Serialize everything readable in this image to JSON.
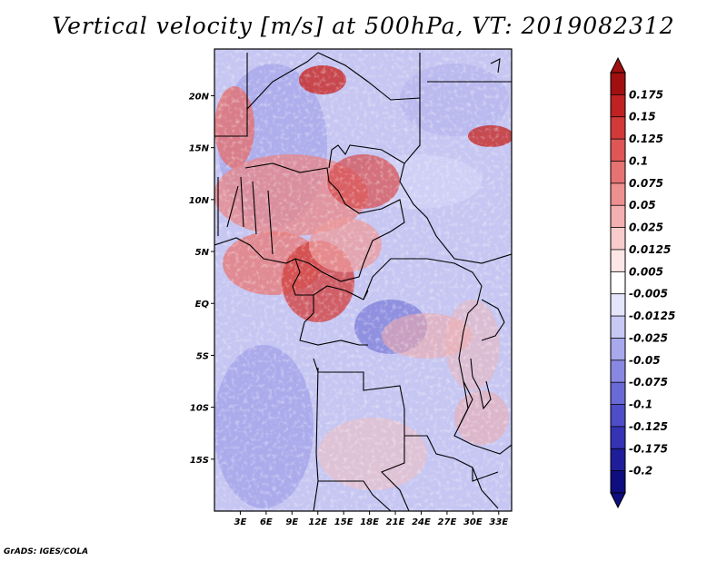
{
  "title": "Vertical velocity [m/s] at 500hPa, VT: 2019082312",
  "footer": "GrADS: IGES/COLA",
  "lat_labels": [
    "20N",
    "15N",
    "10N",
    "5N",
    "EQ",
    "5S",
    "10S",
    "15S"
  ],
  "lon_labels": [
    "3E",
    "6E",
    "9E",
    "12E",
    "15E",
    "18E",
    "21E",
    "24E",
    "27E",
    "30E",
    "33E"
  ],
  "colorbar": {
    "levels": [
      "0.175",
      "0.15",
      "0.125",
      "0.1",
      "0.075",
      "0.05",
      "0.025",
      "0.0125",
      "0.005",
      "-0.005",
      "-0.0125",
      "-0.025",
      "-0.05",
      "-0.075",
      "-0.1",
      "-0.125",
      "-0.175",
      "-0.2"
    ],
    "colors": [
      "#a01010",
      "#bf2222",
      "#d23a3a",
      "#df5656",
      "#e77272",
      "#ee9090",
      "#f4b0b0",
      "#f9cccc",
      "#fde6e6",
      "#ffffff",
      "#e4e4fa",
      "#c8c8f4",
      "#a8a8ec",
      "#8888e2",
      "#6a6ad6",
      "#4e4ec8",
      "#3434b4",
      "#1e1e9a",
      "#0e0e7e"
    ]
  },
  "chart_data": {
    "type": "heatmap",
    "title": "Vertical velocity [m/s] at 500hPa, VT: 2019082312",
    "variable": "Vertical velocity",
    "units": "m/s",
    "level": "500hPa",
    "valid_time": "2019082312",
    "lon_range": [
      0,
      34.5
    ],
    "lat_range": [
      -20,
      24.5
    ],
    "contour_levels": [
      -0.2,
      -0.175,
      -0.125,
      -0.1,
      -0.075,
      -0.05,
      -0.025,
      -0.0125,
      -0.005,
      0.005,
      0.0125,
      0.025,
      0.05,
      0.075,
      0.1,
      0.125,
      0.15,
      0.175
    ],
    "x_ticks": [
      "3E",
      "6E",
      "9E",
      "12E",
      "15E",
      "18E",
      "21E",
      "24E",
      "27E",
      "30E",
      "33E"
    ],
    "y_ticks": [
      "20N",
      "15N",
      "10N",
      "5N",
      "EQ",
      "5S",
      "10S",
      "15S"
    ]
  }
}
